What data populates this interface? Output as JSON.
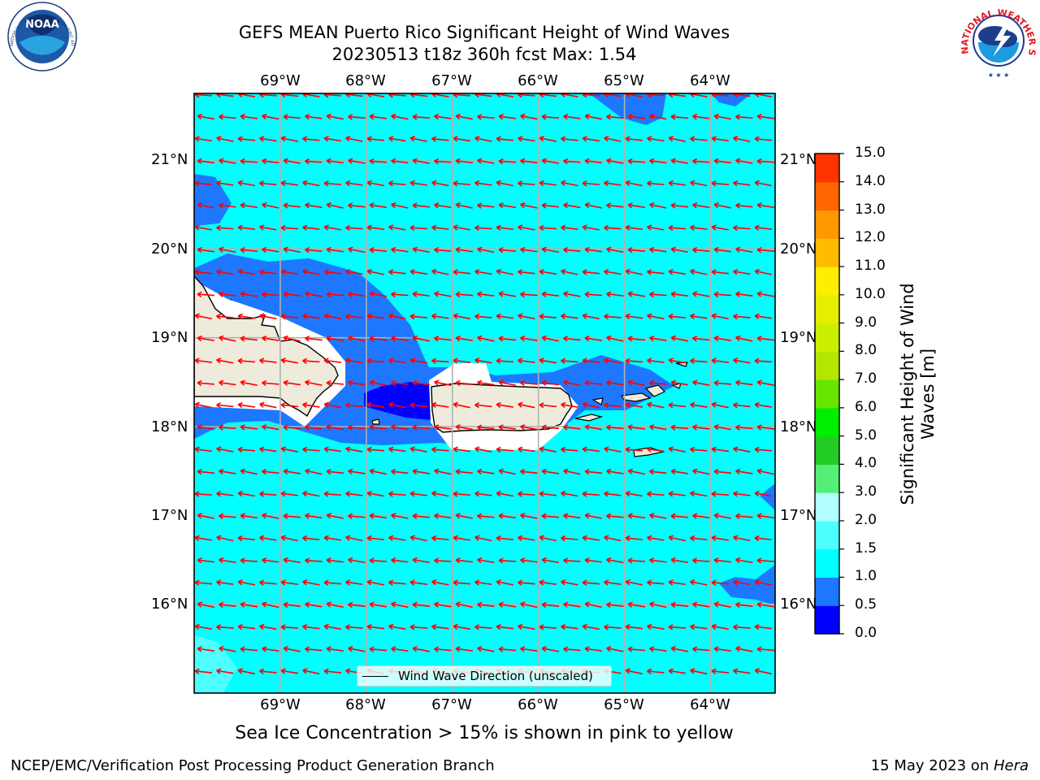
{
  "header": {
    "title_line1": "GEFS MEAN Puerto Rico Significant Height of Wind Waves",
    "title_line2": "20230513 t18z 360h fcst   Max: 1.54"
  },
  "map": {
    "lon_range": [
      -70.0,
      -63.25
    ],
    "lat_range": [
      15.0,
      21.75
    ],
    "lon_ticks": [
      {
        "value": -69,
        "label": "69°W"
      },
      {
        "value": -68,
        "label": "68°W"
      },
      {
        "value": -67,
        "label": "67°W"
      },
      {
        "value": -66,
        "label": "66°W"
      },
      {
        "value": -65,
        "label": "65°W"
      },
      {
        "value": -64,
        "label": "64°W"
      }
    ],
    "lat_ticks": [
      {
        "value": 21,
        "label": "21°N"
      },
      {
        "value": 20,
        "label": "20°N"
      },
      {
        "value": 19,
        "label": "19°N"
      },
      {
        "value": 18,
        "label": "18°N"
      },
      {
        "value": 17,
        "label": "17°N"
      },
      {
        "value": 16,
        "label": "16°N"
      }
    ],
    "gridlines": true,
    "background_fill_color": "#00ffff",
    "land_color": "#efebdc",
    "arrow_color": "#ff0000",
    "arrow_direction": "toward west-southwest"
  },
  "legend": {
    "label": "Wind Wave Direction (unscaled)",
    "placement": "bottom-center"
  },
  "colorbar": {
    "label_line1": "Significant Height of Wind",
    "label_line2": "Waves [m]",
    "levels": [
      0.0,
      0.5,
      1.0,
      1.5,
      2.0,
      3.0,
      4.0,
      5.0,
      6.0,
      7.0,
      8.0,
      9.0,
      10.0,
      11.0,
      12.0,
      13.0,
      14.0,
      15.0
    ],
    "tick_labels": [
      "0.0",
      "0.5",
      "1.0",
      "1.5",
      "2.0",
      "3.0",
      "4.0",
      "5.0",
      "6.0",
      "7.0",
      "8.0",
      "9.0",
      "10.0",
      "11.0",
      "12.0",
      "13.0",
      "14.0",
      "15.0"
    ],
    "colors": [
      "#0000ff",
      "#1e78ff",
      "#00ffff",
      "#4dffff",
      "#b3ffff",
      "#55ee77",
      "#22cc22",
      "#00ee00",
      "#66e600",
      "#b3e600",
      "#ccee00",
      "#e6ee00",
      "#ffee00",
      "#ffbb00",
      "#ff9900",
      "#ff6600",
      "#ff3300"
    ]
  },
  "footer": {
    "note": "Sea Ice Concentration > 15% is shown in pink to yellow",
    "left": "NCEP/EMC/Verification Post Processing Product Generation Branch",
    "right_prefix": "15 May 2023 on ",
    "right_host": "Hera"
  },
  "logos": {
    "noaa": "NOAA",
    "noaa_ring": "NATIONAL OCEANIC AND ATMOSPHERIC ADMINISTRATION · U.S. DEPARTMENT OF COMMERCE",
    "nws_ring": "NATIONAL WEATHER SERVICE"
  }
}
